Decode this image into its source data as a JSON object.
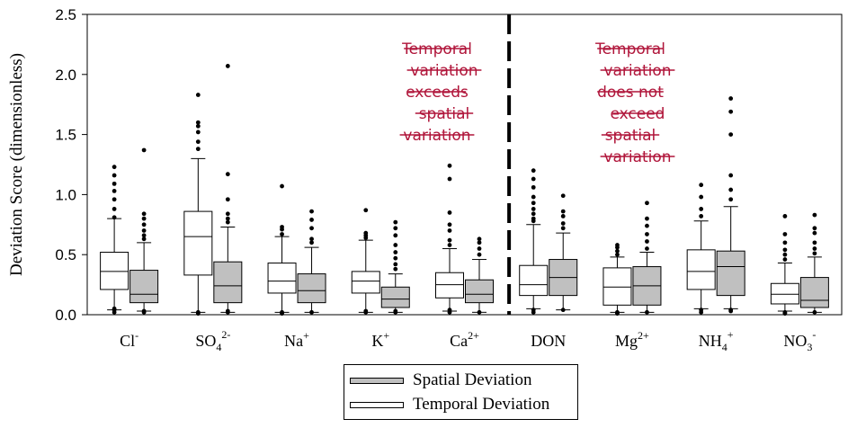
{
  "chart_data": {
    "type": "boxplot",
    "ylabel": "Deviation Score (dimensionless)",
    "ylim": [
      0,
      2.5
    ],
    "yticks": [
      "0.0",
      "0.5",
      "1.0",
      "1.5",
      "2.0",
      "2.5"
    ],
    "categories": [
      {
        "base": "Cl",
        "sub": "",
        "sup": "-"
      },
      {
        "base": "SO",
        "sub": "4",
        "sup": "2-"
      },
      {
        "base": "Na",
        "sub": "",
        "sup": "+"
      },
      {
        "base": "K",
        "sub": "",
        "sup": "+"
      },
      {
        "base": "Ca",
        "sub": "",
        "sup": "2+"
      },
      {
        "base": "DON",
        "sub": "",
        "sup": ""
      },
      {
        "base": "Mg",
        "sub": "",
        "sup": "2+"
      },
      {
        "base": "NH",
        "sub": "4",
        "sup": "+"
      },
      {
        "base": "NO",
        "sub": "3",
        "sup": "-"
      }
    ],
    "series": [
      {
        "name": "Temporal Deviation",
        "color": "#ffffff",
        "boxes": [
          {
            "min": 0.04,
            "q1": 0.21,
            "median": 0.36,
            "q3": 0.52,
            "max": 0.8,
            "outliers": [
              0.81,
              0.88,
              0.96,
              1.03,
              1.09,
              1.16,
              1.23,
              0.02,
              0.04,
              0.05
            ]
          },
          {
            "min": 0.02,
            "q1": 0.33,
            "median": 0.65,
            "q3": 0.86,
            "max": 1.3,
            "outliers": [
              1.38,
              1.44,
              1.52,
              1.57,
              1.6,
              1.83,
              0.01,
              0.02
            ]
          },
          {
            "min": 0.02,
            "q1": 0.18,
            "median": 0.28,
            "q3": 0.43,
            "max": 0.65,
            "outliers": [
              0.67,
              0.71,
              0.73,
              1.07,
              0.01,
              0.02
            ]
          },
          {
            "min": 0.02,
            "q1": 0.18,
            "median": 0.28,
            "q3": 0.36,
            "max": 0.62,
            "outliers": [
              0.64,
              0.66,
              0.68,
              0.87,
              0.02,
              0.03
            ]
          },
          {
            "min": 0.03,
            "q1": 0.14,
            "median": 0.25,
            "q3": 0.35,
            "max": 0.55,
            "outliers": [
              0.58,
              0.62,
              0.7,
              0.75,
              0.85,
              1.13,
              1.24,
              0.02,
              0.04
            ]
          },
          {
            "min": 0.05,
            "q1": 0.16,
            "median": 0.25,
            "q3": 0.41,
            "max": 0.75,
            "outliers": [
              0.78,
              0.8,
              0.84,
              0.88,
              0.93,
              0.98,
              1.06,
              1.13,
              1.2,
              0.02,
              0.04
            ]
          },
          {
            "min": 0.02,
            "q1": 0.08,
            "median": 0.23,
            "q3": 0.39,
            "max": 0.48,
            "outliers": [
              0.5,
              0.53,
              0.56,
              0.58,
              0.01,
              0.02
            ]
          },
          {
            "min": 0.05,
            "q1": 0.21,
            "median": 0.36,
            "q3": 0.54,
            "max": 0.78,
            "outliers": [
              0.82,
              0.88,
              0.98,
              1.08,
              0.02,
              0.04
            ]
          },
          {
            "min": 0.03,
            "q1": 0.09,
            "median": 0.17,
            "q3": 0.26,
            "max": 0.43,
            "outliers": [
              0.46,
              0.5,
              0.54,
              0.6,
              0.67,
              0.82,
              0.01,
              0.02
            ]
          }
        ]
      },
      {
        "name": "Spatial Deviation",
        "color": "#c0c0c0",
        "boxes": [
          {
            "min": 0.03,
            "q1": 0.1,
            "median": 0.17,
            "q3": 0.37,
            "max": 0.6,
            "outliers": [
              0.63,
              0.66,
              0.7,
              0.75,
              0.8,
              0.84,
              1.37,
              0.02,
              0.03
            ]
          },
          {
            "min": 0.02,
            "q1": 0.1,
            "median": 0.24,
            "q3": 0.44,
            "max": 0.73,
            "outliers": [
              0.77,
              0.8,
              0.84,
              0.96,
              1.17,
              2.07,
              0.02,
              0.03
            ]
          },
          {
            "min": 0.02,
            "q1": 0.1,
            "median": 0.2,
            "q3": 0.34,
            "max": 0.56,
            "outliers": [
              0.6,
              0.63,
              0.72,
              0.79,
              0.86,
              0.02
            ]
          },
          {
            "min": 0.02,
            "q1": 0.06,
            "median": 0.13,
            "q3": 0.23,
            "max": 0.34,
            "outliers": [
              0.38,
              0.42,
              0.47,
              0.52,
              0.58,
              0.66,
              0.72,
              0.77,
              0.02,
              0.03
            ]
          },
          {
            "min": 0.02,
            "q1": 0.1,
            "median": 0.17,
            "q3": 0.29,
            "max": 0.46,
            "outliers": [
              0.5,
              0.55,
              0.6,
              0.63,
              0.02
            ]
          },
          {
            "min": 0.04,
            "q1": 0.16,
            "median": 0.31,
            "q3": 0.46,
            "max": 0.68,
            "outliers": [
              0.72,
              0.76,
              0.82,
              0.86,
              0.99,
              0.04
            ]
          },
          {
            "min": 0.02,
            "q1": 0.08,
            "median": 0.24,
            "q3": 0.4,
            "max": 0.52,
            "outliers": [
              0.55,
              0.61,
              0.67,
              0.74,
              0.8,
              0.93,
              0.02
            ]
          },
          {
            "min": 0.05,
            "q1": 0.16,
            "median": 0.4,
            "q3": 0.53,
            "max": 0.9,
            "outliers": [
              0.96,
              1.04,
              1.16,
              1.5,
              1.69,
              1.8,
              0.03,
              0.04
            ]
          },
          {
            "min": 0.02,
            "q1": 0.06,
            "median": 0.12,
            "q3": 0.31,
            "max": 0.48,
            "outliers": [
              0.51,
              0.55,
              0.6,
              0.68,
              0.72,
              0.83,
              0.02
            ]
          }
        ]
      }
    ],
    "divider_after_category": "Ca",
    "annotations": [
      {
        "position": "above-K-Ca",
        "lines": [
          "Temporal",
          "variation",
          "exceeds",
          "spatial",
          "variation"
        ],
        "color": "#b0153a"
      },
      {
        "position": "above-Mg-NH",
        "lines": [
          "Temporal",
          "variation",
          "does not",
          "exceed",
          "spatial",
          "variation"
        ],
        "color": "#b0153a"
      }
    ],
    "legend": {
      "placement": "bottom-center",
      "entries": [
        "Spatial Deviation",
        "Temporal Deviation"
      ]
    }
  }
}
